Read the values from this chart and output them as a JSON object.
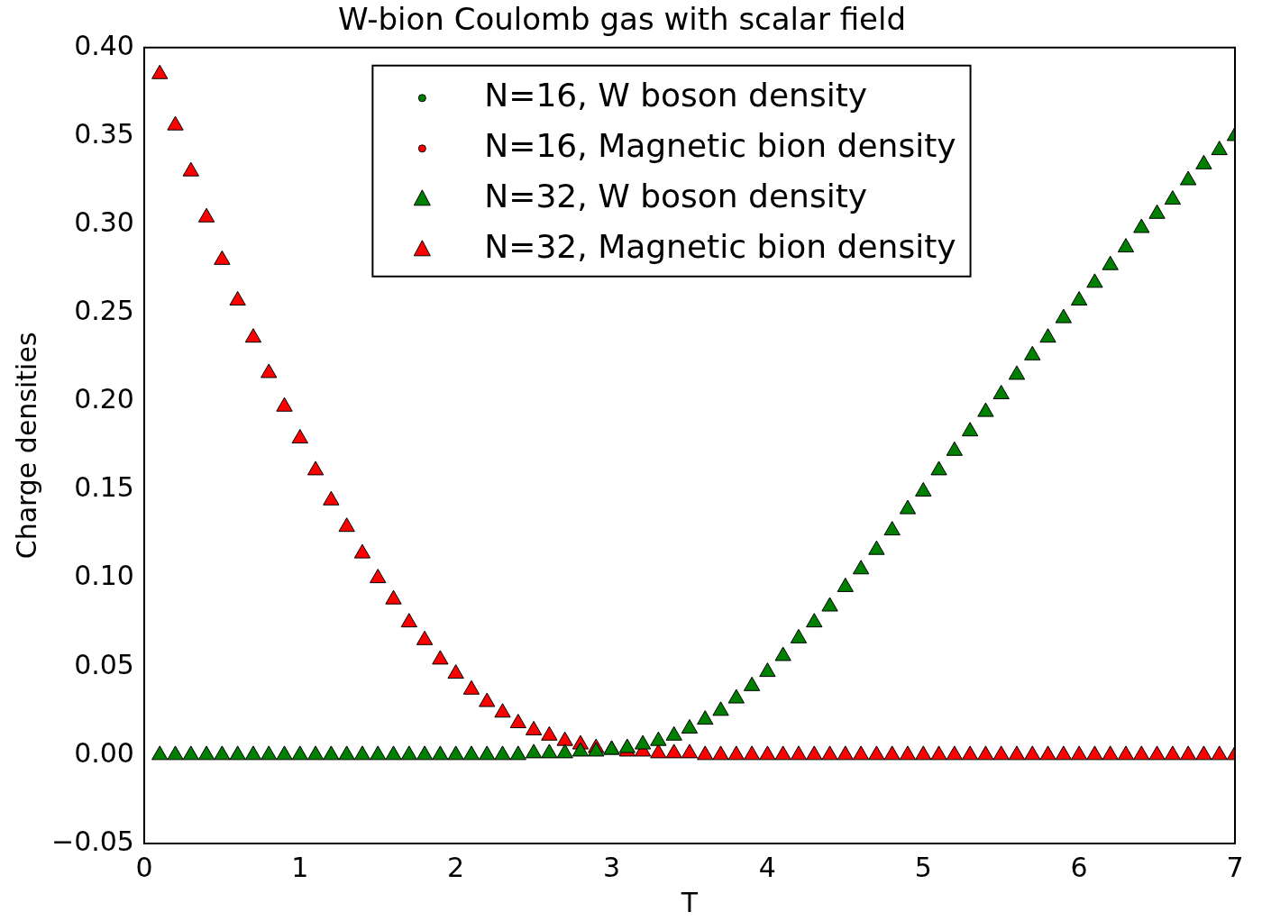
{
  "chart_data": {
    "type": "scatter",
    "title": "W-bion Coulomb gas with scalar field",
    "xlabel": "T",
    "ylabel": "Charge densities",
    "x": [
      0.1,
      0.2,
      0.3,
      0.4,
      0.5,
      0.6,
      0.7,
      0.8,
      0.9,
      1.0,
      1.1,
      1.2,
      1.3,
      1.4,
      1.5,
      1.6,
      1.7,
      1.8,
      1.9,
      2.0,
      2.1,
      2.2,
      2.3,
      2.4,
      2.5,
      2.6,
      2.7,
      2.8,
      2.9,
      3.0,
      3.1,
      3.2,
      3.3,
      3.4,
      3.5,
      3.6,
      3.7,
      3.8,
      3.9,
      4.0,
      4.1,
      4.2,
      4.3,
      4.4,
      4.5,
      4.6,
      4.7,
      4.8,
      4.9,
      5.0,
      5.1,
      5.2,
      5.3,
      5.4,
      5.5,
      5.6,
      5.7,
      5.8,
      5.9,
      6.0,
      6.1,
      6.2,
      6.3,
      6.4,
      6.5,
      6.6,
      6.7,
      6.8,
      6.9,
      7.0
    ],
    "series": [
      {
        "name": "N=16, W boson density",
        "color": "#008000",
        "marker": "circle",
        "values": [
          null,
          null,
          null,
          null,
          null,
          null,
          null,
          null,
          null,
          null,
          null,
          null,
          null,
          null,
          null,
          null,
          null,
          null,
          null,
          null,
          null,
          null,
          null,
          null,
          null,
          null,
          null,
          null,
          null,
          null,
          null,
          null,
          null,
          null,
          null,
          null,
          null,
          null,
          null,
          null,
          null,
          null,
          null,
          null,
          null,
          null,
          null,
          null,
          null,
          null,
          null,
          null,
          null,
          null,
          null,
          null,
          null,
          null,
          null,
          null,
          null,
          null,
          null,
          null,
          null,
          null,
          null,
          null,
          null,
          null
        ]
      },
      {
        "name": "N=16, Magnetic bion density",
        "color": "#ff0000",
        "marker": "circle",
        "values": [
          null,
          null,
          null,
          null,
          null,
          null,
          null,
          null,
          null,
          null,
          null,
          null,
          null,
          null,
          null,
          null,
          null,
          null,
          null,
          null,
          null,
          null,
          null,
          null,
          null,
          null,
          null,
          null,
          null,
          null,
          null,
          null,
          null,
          null,
          null,
          null,
          null,
          null,
          null,
          null,
          null,
          null,
          null,
          null,
          null,
          null,
          null,
          null,
          null,
          null,
          null,
          null,
          null,
          null,
          null,
          null,
          null,
          null,
          null,
          null,
          null,
          null,
          null,
          null,
          null,
          null,
          null,
          null,
          null,
          null
        ]
      },
      {
        "name": "N=32, W boson density",
        "color": "#008000",
        "marker": "triangle",
        "values": [
          0,
          0,
          0,
          0,
          0,
          0,
          0,
          0,
          0,
          0,
          0,
          0,
          0,
          0,
          0,
          0,
          0,
          0,
          0,
          0,
          0,
          0,
          0,
          0,
          0.001,
          0.001,
          0.001,
          0.002,
          0.002,
          0.003,
          0.004,
          0.006,
          0.008,
          0.011,
          0.015,
          0.02,
          0.025,
          0.032,
          0.039,
          0.047,
          0.056,
          0.066,
          0.075,
          0.084,
          0.095,
          0.105,
          0.116,
          0.127,
          0.139,
          0.149,
          0.161,
          0.172,
          0.183,
          0.194,
          0.204,
          0.215,
          0.226,
          0.236,
          0.247,
          0.257,
          0.267,
          0.277,
          0.287,
          0.298,
          0.306,
          0.314,
          0.325,
          0.334,
          0.342,
          0.35
        ]
      },
      {
        "name": "N=32, Magnetic bion density",
        "color": "#ff0000",
        "marker": "triangle",
        "values": [
          0.385,
          0.356,
          0.33,
          0.304,
          0.28,
          0.257,
          0.236,
          0.216,
          0.197,
          0.179,
          0.161,
          0.144,
          0.129,
          0.114,
          0.1,
          0.088,
          0.075,
          0.065,
          0.054,
          0.046,
          0.037,
          0.03,
          0.024,
          0.018,
          0.014,
          0.011,
          0.008,
          0.006,
          0.004,
          0.003,
          0.002,
          0.002,
          0.001,
          0.001,
          0.001,
          0,
          0,
          0,
          0,
          0,
          0,
          0,
          0,
          0,
          0,
          0,
          0,
          0,
          0,
          0,
          0,
          0,
          0,
          0,
          0,
          0,
          0,
          0,
          0,
          0,
          0,
          0,
          0,
          0,
          0,
          0,
          0,
          0,
          0,
          0
        ]
      }
    ],
    "xlim": [
      0,
      7
    ],
    "xticks": [
      0,
      1,
      2,
      3,
      4,
      5,
      6,
      7
    ],
    "ylim": [
      -0.05,
      0.4
    ],
    "yticks": [
      {
        "value": -0.05,
        "label": "−0.05"
      },
      {
        "value": 0,
        "label": "0.00"
      },
      {
        "value": 0.05,
        "label": "0.05"
      },
      {
        "value": 0.1,
        "label": "0.10"
      },
      {
        "value": 0.15,
        "label": "0.15"
      },
      {
        "value": 0.2,
        "label": "0.20"
      },
      {
        "value": 0.25,
        "label": "0.25"
      },
      {
        "value": 0.3,
        "label": "0.30"
      },
      {
        "value": 0.35,
        "label": "0.35"
      },
      {
        "value": 0.4,
        "label": "0.40"
      }
    ],
    "legend": "top"
  }
}
